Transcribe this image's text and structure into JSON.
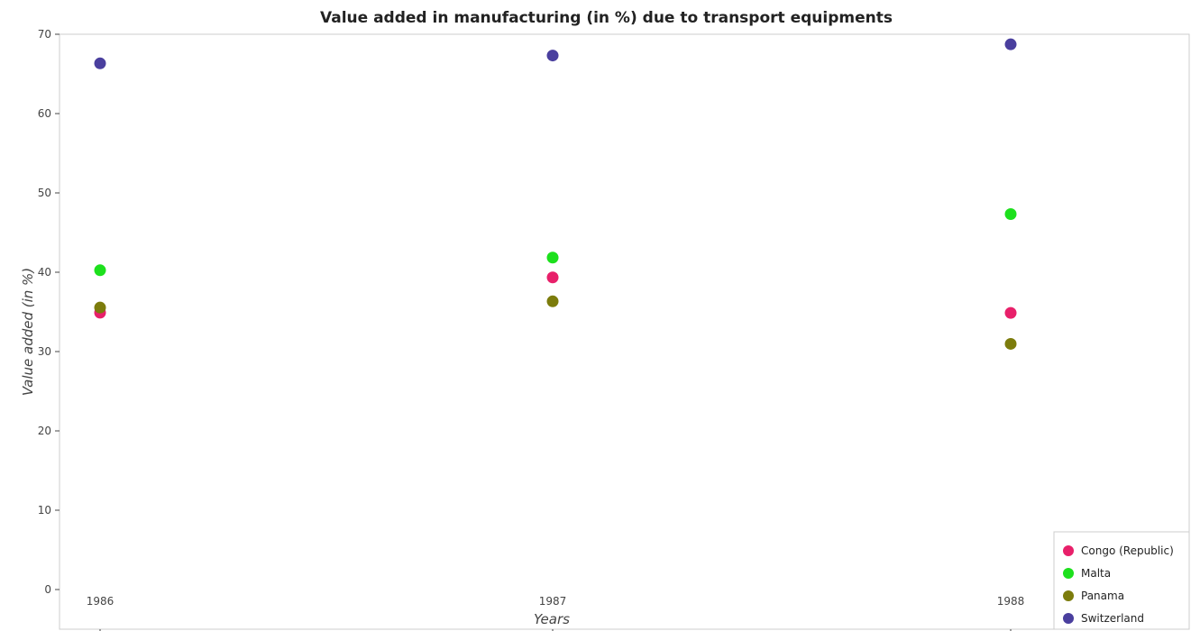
{
  "chart_data": {
    "type": "scatter",
    "title": "Value added in manufacturing (in %) due to transport equipments",
    "xlabel": "Years",
    "ylabel": "Value added (in %)",
    "categories": [
      "1986",
      "1987",
      "1988"
    ],
    "ylim": [
      0,
      70
    ],
    "yticks": [
      "0",
      "10",
      "20",
      "30",
      "40",
      "50",
      "60",
      "70"
    ],
    "grid": false,
    "legend_position": "bottom-right",
    "series": [
      {
        "name": "Congo (Republic)",
        "color": "#e8206a",
        "values": [
          34.9,
          39.35,
          34.87
        ]
      },
      {
        "name": "Malta",
        "color": "#1de01d",
        "values": [
          40.25,
          41.85,
          47.33
        ]
      },
      {
        "name": "Panama",
        "color": "#7c7c0c",
        "values": [
          35.55,
          36.33,
          30.97
        ]
      },
      {
        "name": "Switzerland",
        "color": "#4a3f9e",
        "values": [
          66.33,
          67.32,
          68.73
        ]
      }
    ]
  }
}
